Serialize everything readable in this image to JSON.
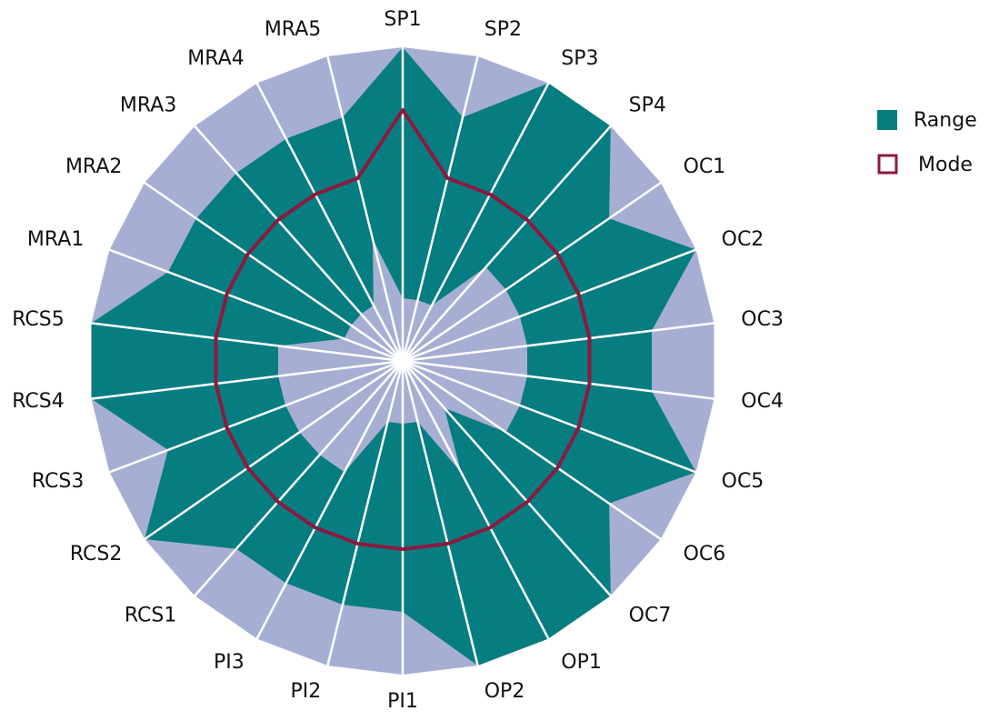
{
  "chart_data": {
    "type": "radar",
    "categories": [
      "SP1",
      "SP2",
      "SP3",
      "SP4",
      "OC1",
      "OC2",
      "OC3",
      "OC4",
      "OC5",
      "OC6",
      "OC7",
      "OP1",
      "OP2",
      "PI1",
      "PI2",
      "PI3",
      "RCS1",
      "RCS2",
      "RCS3",
      "RCS4",
      "RCS5",
      "MRA1",
      "MRA2",
      "MRA3",
      "MRA4",
      "MRA5"
    ],
    "ylim": [
      0,
      5
    ],
    "background_color": "#a6afd3",
    "series": [
      {
        "name": "Range",
        "color": "#067d80",
        "low": [
          1,
          1,
          1,
          2,
          2,
          2,
          2,
          2,
          2,
          2,
          1,
          2,
          1,
          1,
          1,
          2,
          2,
          2,
          2,
          2,
          2,
          1,
          1,
          1,
          1,
          2
        ],
        "high": [
          5,
          4,
          5,
          5,
          4,
          5,
          4,
          4,
          5,
          4,
          5,
          5,
          5,
          4,
          4,
          4,
          4,
          5,
          4,
          5,
          5,
          4,
          4,
          4,
          4,
          4
        ]
      },
      {
        "name": "Mode",
        "color": "#8b1a3e",
        "values": [
          4,
          3,
          3,
          3,
          3,
          3,
          3,
          3,
          3,
          3,
          3,
          3,
          3,
          3,
          3,
          3,
          3,
          3,
          3,
          3,
          3,
          3,
          3,
          3,
          3,
          3
        ]
      }
    ],
    "legend": "right"
  }
}
